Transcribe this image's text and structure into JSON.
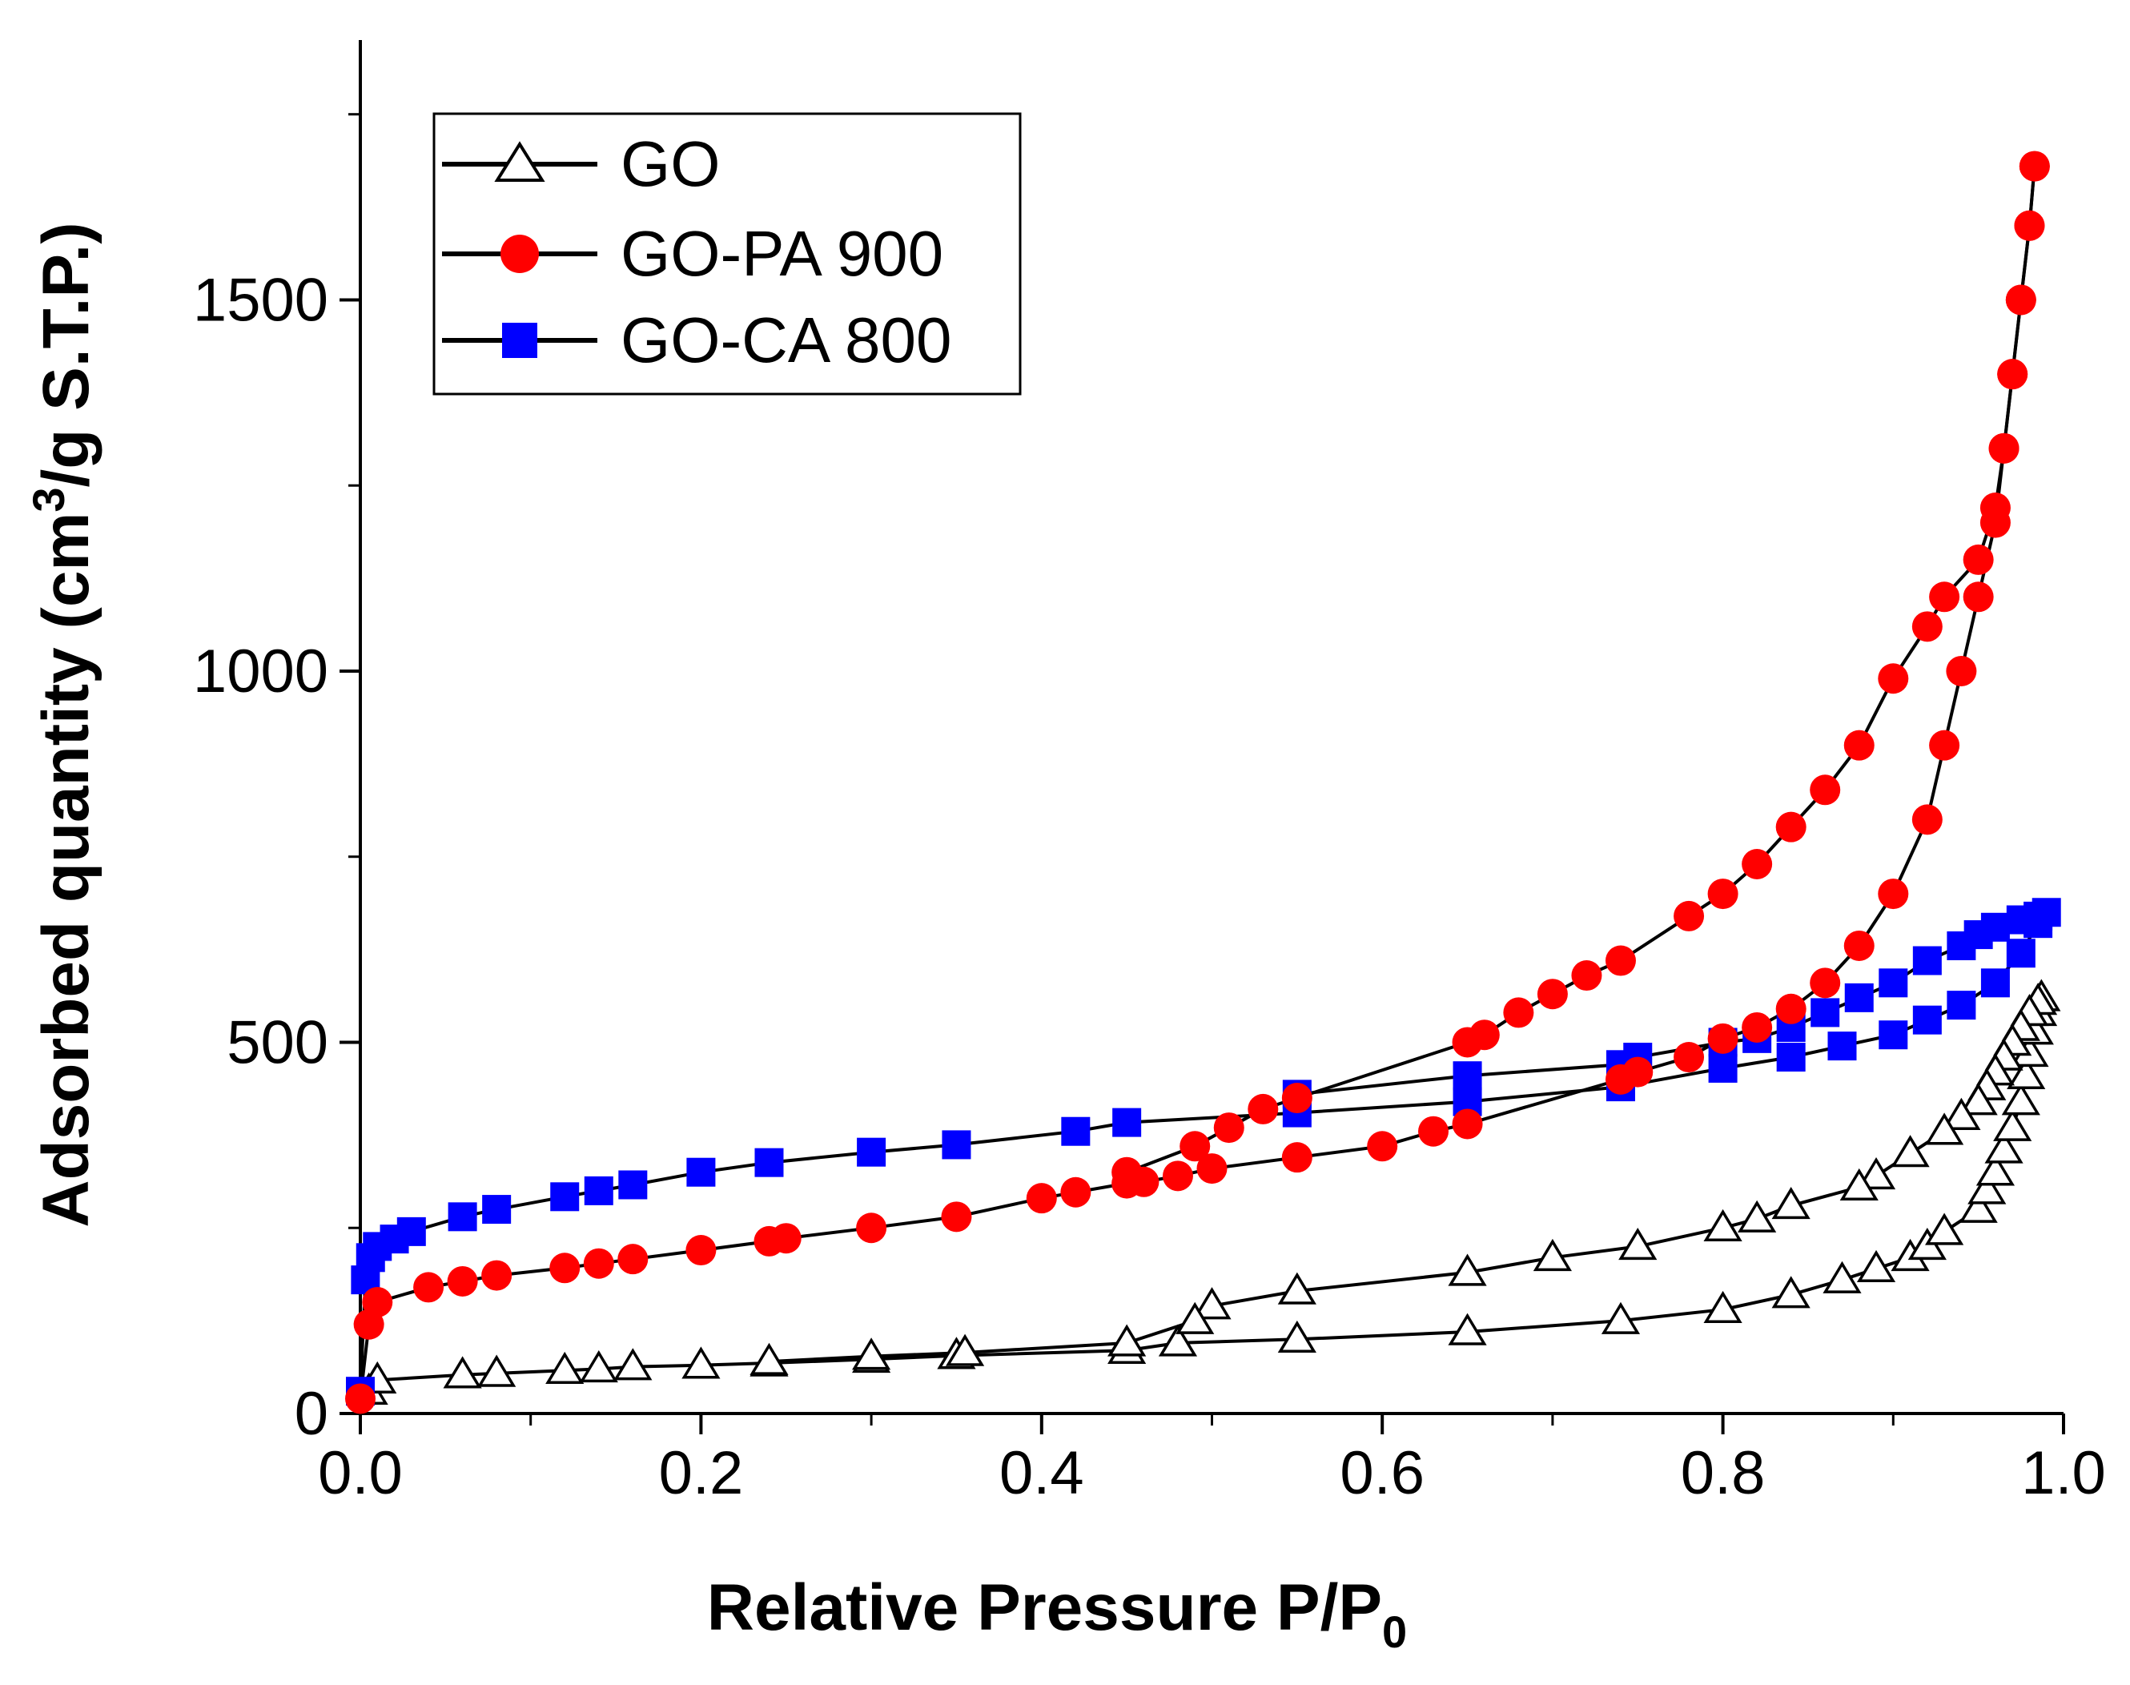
{
  "chart_data": {
    "type": "scatter",
    "title": "",
    "xlabel_main": "Relative Pressure P/P",
    "xlabel_sub": "0",
    "ylabel_pre": "Adsorbed quantity (cm",
    "ylabel_sup": "3",
    "ylabel_post": "/g S.T.P.)",
    "xlim": [
      0.0,
      1.0
    ],
    "ylim": [
      0,
      1850
    ],
    "xticks": [
      0.0,
      0.2,
      0.4,
      0.6,
      0.8,
      1.0
    ],
    "xtick_labels": [
      "0.0",
      "0.2",
      "0.4",
      "0.6",
      "0.8",
      "1.0"
    ],
    "yticks": [
      0,
      500,
      1000,
      1500
    ],
    "ytick_labels": [
      "0",
      "500",
      "1000",
      "1500"
    ],
    "legend_position": "top-left",
    "series": [
      {
        "name": "GO",
        "label": "GO",
        "marker": "triangle-open",
        "color": "#000000",
        "adsorption": [
          [
            0.005,
            30
          ],
          [
            0.01,
            45
          ],
          [
            0.06,
            52
          ],
          [
            0.08,
            54
          ],
          [
            0.12,
            58
          ],
          [
            0.14,
            60
          ],
          [
            0.16,
            63
          ],
          [
            0.2,
            65
          ],
          [
            0.24,
            68
          ],
          [
            0.3,
            73
          ],
          [
            0.35,
            78
          ],
          [
            0.45,
            85
          ],
          [
            0.48,
            95
          ],
          [
            0.55,
            100
          ],
          [
            0.65,
            110
          ],
          [
            0.74,
            125
          ],
          [
            0.8,
            140
          ],
          [
            0.84,
            160
          ],
          [
            0.87,
            180
          ],
          [
            0.89,
            195
          ],
          [
            0.91,
            210
          ],
          [
            0.92,
            225
          ],
          [
            0.93,
            245
          ],
          [
            0.95,
            275
          ],
          [
            0.955,
            300
          ],
          [
            0.96,
            325
          ],
          [
            0.965,
            355
          ],
          [
            0.97,
            385
          ],
          [
            0.975,
            420
          ],
          [
            0.978,
            455
          ],
          [
            0.98,
            485
          ],
          [
            0.983,
            515
          ],
          [
            0.985,
            540
          ],
          [
            0.987,
            560
          ]
        ],
        "desorption": [
          [
            0.985,
            555
          ],
          [
            0.98,
            540
          ],
          [
            0.975,
            520
          ],
          [
            0.97,
            500
          ],
          [
            0.965,
            480
          ],
          [
            0.96,
            460
          ],
          [
            0.955,
            440
          ],
          [
            0.95,
            420
          ],
          [
            0.94,
            400
          ],
          [
            0.93,
            380
          ],
          [
            0.91,
            350
          ],
          [
            0.89,
            320
          ],
          [
            0.88,
            305
          ],
          [
            0.84,
            280
          ],
          [
            0.82,
            262
          ],
          [
            0.8,
            250
          ],
          [
            0.75,
            225
          ],
          [
            0.7,
            210
          ],
          [
            0.65,
            190
          ],
          [
            0.55,
            165
          ],
          [
            0.5,
            145
          ],
          [
            0.49,
            125
          ],
          [
            0.45,
            95
          ],
          [
            0.355,
            82
          ],
          [
            0.3,
            77
          ],
          [
            0.24,
            70
          ]
        ]
      },
      {
        "name": "GO-PA 900",
        "label": "GO-PA 900",
        "marker": "circle-filled",
        "color": "#ff0000",
        "adsorption": [
          [
            0.0,
            20
          ],
          [
            0.005,
            120
          ],
          [
            0.01,
            150
          ],
          [
            0.04,
            170
          ],
          [
            0.06,
            178
          ],
          [
            0.08,
            186
          ],
          [
            0.12,
            196
          ],
          [
            0.14,
            202
          ],
          [
            0.16,
            208
          ],
          [
            0.2,
            220
          ],
          [
            0.24,
            232
          ],
          [
            0.25,
            236
          ],
          [
            0.3,
            250
          ],
          [
            0.35,
            265
          ],
          [
            0.4,
            290
          ],
          [
            0.42,
            298
          ],
          [
            0.45,
            310
          ],
          [
            0.46,
            312
          ],
          [
            0.48,
            320
          ],
          [
            0.5,
            330
          ],
          [
            0.55,
            345
          ],
          [
            0.6,
            360
          ],
          [
            0.63,
            380
          ],
          [
            0.65,
            390
          ],
          [
            0.74,
            450
          ],
          [
            0.75,
            460
          ],
          [
            0.78,
            480
          ],
          [
            0.8,
            505
          ],
          [
            0.82,
            520
          ],
          [
            0.84,
            545
          ],
          [
            0.86,
            580
          ],
          [
            0.88,
            630
          ],
          [
            0.9,
            700
          ],
          [
            0.92,
            800
          ],
          [
            0.93,
            900
          ],
          [
            0.94,
            1000
          ],
          [
            0.95,
            1100
          ],
          [
            0.96,
            1200
          ],
          [
            0.965,
            1300
          ],
          [
            0.97,
            1400
          ],
          [
            0.975,
            1500
          ],
          [
            0.98,
            1600
          ],
          [
            0.983,
            1680
          ]
        ],
        "desorption": [
          [
            0.983,
            1680
          ],
          [
            0.98,
            1600
          ],
          [
            0.975,
            1500
          ],
          [
            0.97,
            1400
          ],
          [
            0.965,
            1300
          ],
          [
            0.96,
            1220
          ],
          [
            0.95,
            1150
          ],
          [
            0.93,
            1100
          ],
          [
            0.92,
            1060
          ],
          [
            0.9,
            990
          ],
          [
            0.88,
            900
          ],
          [
            0.86,
            840
          ],
          [
            0.84,
            790
          ],
          [
            0.82,
            740
          ],
          [
            0.8,
            700
          ],
          [
            0.78,
            670
          ],
          [
            0.74,
            610
          ],
          [
            0.72,
            590
          ],
          [
            0.7,
            565
          ],
          [
            0.68,
            540
          ],
          [
            0.66,
            510
          ],
          [
            0.65,
            500
          ],
          [
            0.55,
            425
          ],
          [
            0.53,
            410
          ],
          [
            0.51,
            385
          ],
          [
            0.49,
            360
          ],
          [
            0.45,
            325
          ]
        ]
      },
      {
        "name": "GO-CA 800",
        "label": "GO-CA 800",
        "marker": "square-filled",
        "color": "#0000ff",
        "adsorption": [
          [
            0.0,
            30
          ],
          [
            0.003,
            180
          ],
          [
            0.006,
            210
          ],
          [
            0.01,
            225
          ],
          [
            0.02,
            235
          ],
          [
            0.03,
            245
          ],
          [
            0.06,
            265
          ],
          [
            0.08,
            275
          ],
          [
            0.12,
            292
          ],
          [
            0.14,
            300
          ],
          [
            0.16,
            308
          ],
          [
            0.2,
            325
          ],
          [
            0.24,
            338
          ],
          [
            0.3,
            352
          ],
          [
            0.35,
            362
          ],
          [
            0.42,
            380
          ],
          [
            0.45,
            392
          ],
          [
            0.55,
            405
          ],
          [
            0.65,
            420
          ],
          [
            0.74,
            440
          ],
          [
            0.8,
            465
          ],
          [
            0.84,
            480
          ],
          [
            0.87,
            495
          ],
          [
            0.9,
            510
          ],
          [
            0.92,
            530
          ],
          [
            0.94,
            550
          ],
          [
            0.96,
            580
          ],
          [
            0.975,
            620
          ],
          [
            0.985,
            660
          ],
          [
            0.99,
            675
          ]
        ],
        "desorption": [
          [
            0.985,
            670
          ],
          [
            0.975,
            665
          ],
          [
            0.96,
            655
          ],
          [
            0.95,
            645
          ],
          [
            0.94,
            630
          ],
          [
            0.92,
            610
          ],
          [
            0.9,
            580
          ],
          [
            0.88,
            560
          ],
          [
            0.86,
            540
          ],
          [
            0.84,
            520
          ],
          [
            0.82,
            505
          ],
          [
            0.8,
            500
          ],
          [
            0.75,
            480
          ],
          [
            0.74,
            470
          ],
          [
            0.65,
            455
          ],
          [
            0.55,
            430
          ]
        ]
      }
    ]
  }
}
